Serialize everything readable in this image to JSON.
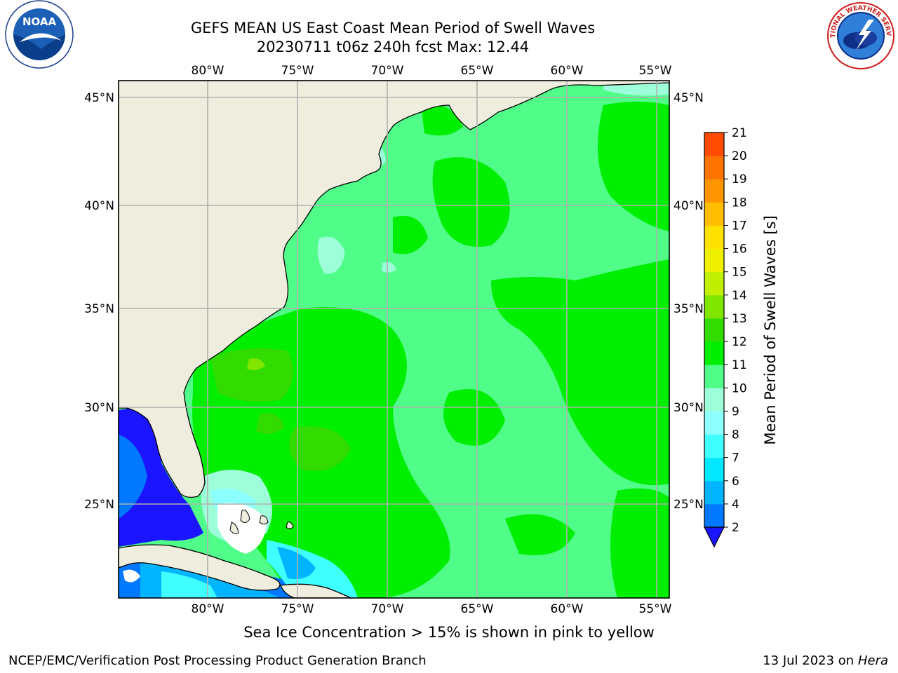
{
  "title": {
    "line1": "GEFS MEAN US East Coast Mean Period of Swell Waves",
    "line2": "20230711 t06z 240h fcst   Max: 12.44"
  },
  "logos": {
    "noaa": {
      "text": "NOAA",
      "ring_text": "NATIONAL OCEANIC AND ATMOSPHERIC ADMINISTRATION · U.S. DEPARTMENT OF COMMERCE"
    },
    "nws": {
      "ring_text": "NATIONAL WEATHER SERVICE"
    }
  },
  "map": {
    "lon_labels": [
      "80°W",
      "75°W",
      "70°W",
      "65°W",
      "60°W",
      "55°W"
    ],
    "lat_labels": [
      "45°N",
      "40°N",
      "35°N",
      "30°N",
      "25°N"
    ],
    "lon_values": [
      -80,
      -75,
      -70,
      -65,
      -60,
      -55
    ],
    "lat_values": [
      45,
      40,
      35,
      30,
      25
    ],
    "extent": {
      "lon_min": -85,
      "lon_max": -54.2,
      "lat_min": 20.5,
      "lat_max": 45.8
    },
    "colors": {
      "land": "#efedde",
      "grid": "#b0b0b0",
      "coast": "#000000"
    }
  },
  "colorbar": {
    "title": "Mean Period of Swell Waves [s]",
    "levels": [
      "2",
      "4",
      "6",
      "7",
      "8",
      "9",
      "10",
      "11",
      "12",
      "13",
      "14",
      "15",
      "16",
      "17",
      "18",
      "19",
      "20",
      "21"
    ],
    "colors": [
      "#0078ff",
      "#00b4ff",
      "#00e8ff",
      "#40ffff",
      "#8cffff",
      "#9cffd9",
      "#50fd88",
      "#00ee00",
      "#32dc00",
      "#80e600",
      "#c0f000",
      "#eef000",
      "#ffe100",
      "#ffbe00",
      "#ff9600",
      "#ff7400",
      "#ff4b00",
      "#ff1400"
    ],
    "under_color": "#1a14ff"
  },
  "caption": "Sea Ice Concentration > 15% is shown in pink to yellow",
  "footer": {
    "left": "NCEP/EMC/Verification Post Processing Product Generation Branch",
    "right_date": "13 Jul 2023 on ",
    "right_machine": "Hera"
  }
}
